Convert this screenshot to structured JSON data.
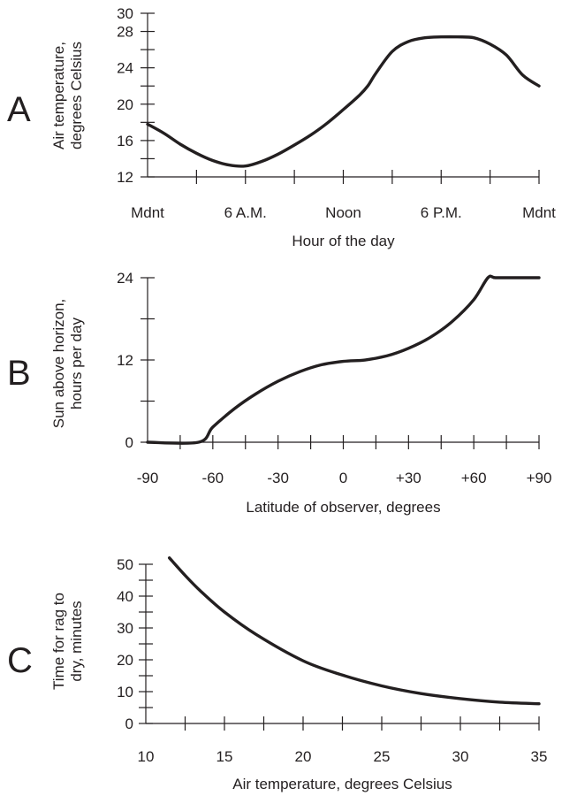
{
  "chart_data": [
    {
      "type": "line",
      "panel_label": "A",
      "xlabel": "Hour of the day",
      "ylabel": [
        "Air temperature,",
        "degrees Celsius"
      ],
      "x_tick_values": [
        0,
        6,
        12,
        18,
        24
      ],
      "x_tick_labels": [
        "Mdnt",
        "6 A.M.",
        "Noon",
        "6 P.M.",
        "Mdnt"
      ],
      "xlim": [
        0,
        24
      ],
      "ylim": [
        12,
        30
      ],
      "y_tick_values": [
        12,
        16,
        20,
        24,
        28,
        30
      ],
      "y_tick_labels": [
        "12",
        "16",
        "20",
        "24",
        "28",
        "30"
      ],
      "y_minor_step": 2,
      "x_minor_step": 3,
      "series": [
        {
          "x": [
            0,
            1,
            2,
            3,
            4,
            5,
            6,
            7,
            8,
            9,
            10,
            11,
            12,
            13,
            13.5,
            14,
            15,
            16,
            17,
            18,
            19,
            20,
            21,
            22,
            23,
            24
          ],
          "y": [
            17.8,
            16.8,
            15.6,
            14.6,
            13.8,
            13.3,
            13.2,
            13.7,
            14.5,
            15.5,
            16.6,
            17.9,
            19.4,
            21.0,
            22.0,
            23.4,
            25.8,
            26.9,
            27.3,
            27.4,
            27.4,
            27.3,
            26.6,
            25.4,
            23.2,
            22.0
          ]
        }
      ]
    },
    {
      "type": "line",
      "panel_label": "B",
      "xlabel": "Latitude of observer, degrees",
      "ylabel": [
        "Sun above horizon,",
        "hours per day"
      ],
      "x_tick_values": [
        -90,
        -60,
        -30,
        0,
        30,
        60,
        90
      ],
      "x_tick_labels": [
        "-90",
        "-60",
        "-30",
        "0",
        "+30",
        "+60",
        "+90"
      ],
      "xlim": [
        -90,
        90
      ],
      "ylim": [
        0,
        24
      ],
      "y_tick_values": [
        0,
        12,
        24
      ],
      "y_tick_labels": [
        "0",
        "12",
        "24"
      ],
      "y_minor_step": 6,
      "x_minor_step": 15,
      "series": [
        {
          "x": [
            -90,
            -66.5,
            -60,
            -50,
            -40,
            -30,
            -20,
            -10,
            0,
            10,
            20,
            30,
            40,
            50,
            60,
            66.5,
            70,
            80,
            90
          ],
          "y": [
            0,
            0,
            2.2,
            4.9,
            7.1,
            8.9,
            10.3,
            11.3,
            11.8,
            12.0,
            12.6,
            13.7,
            15.3,
            17.6,
            20.8,
            24,
            24,
            24,
            24
          ]
        }
      ]
    },
    {
      "type": "line",
      "panel_label": "C",
      "xlabel": "Air temperature, degrees Celsius",
      "ylabel": [
        "Time for rag to",
        "dry, minutes"
      ],
      "x_tick_values": [
        10,
        15,
        20,
        25,
        30,
        35
      ],
      "x_tick_labels": [
        "10",
        "15",
        "20",
        "25",
        "30",
        "35"
      ],
      "xlim": [
        10,
        35
      ],
      "ylim": [
        0,
        50
      ],
      "y_tick_values": [
        0,
        10,
        20,
        30,
        40,
        50
      ],
      "y_tick_labels": [
        "0",
        "10",
        "20",
        "30",
        "40",
        "50"
      ],
      "y_minor_step": 5,
      "x_minor_step": 2.5,
      "series": [
        {
          "x": [
            11.5,
            12.5,
            13.5,
            15,
            17,
            20,
            22.5,
            25,
            27.5,
            30,
            32.5,
            35
          ],
          "y": [
            52,
            46.5,
            41.5,
            35,
            28,
            19.7,
            15.2,
            11.8,
            9.4,
            7.8,
            6.7,
            6.2
          ]
        }
      ]
    }
  ]
}
